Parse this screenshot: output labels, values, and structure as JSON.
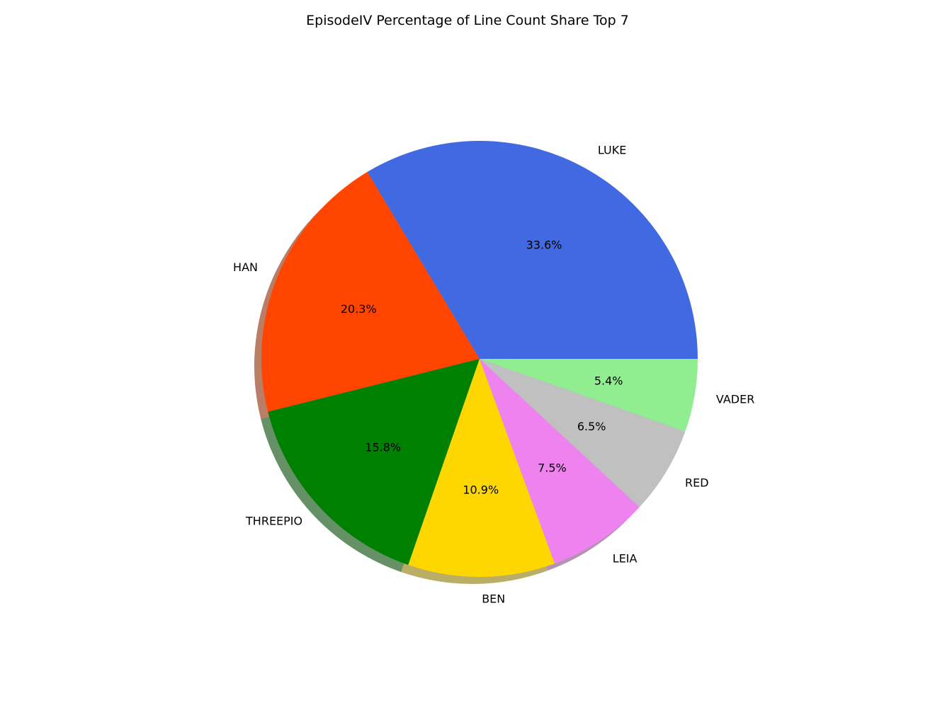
{
  "chart_data": {
    "type": "pie",
    "title": "EpisodeIV Percentage of Line Count Share Top 7",
    "start_angle": 0,
    "direction": "counterclockwise",
    "shadow": true,
    "slices": [
      {
        "label": "LUKE",
        "value": 33.6,
        "pct_label": "33.6%",
        "color": "#4169e1"
      },
      {
        "label": "HAN",
        "value": 20.3,
        "pct_label": "20.3%",
        "color": "#ff4500"
      },
      {
        "label": "THREEPIO",
        "value": 15.8,
        "pct_label": "15.8%",
        "color": "#008000"
      },
      {
        "label": "BEN",
        "value": 10.9,
        "pct_label": "10.9%",
        "color": "#ffd700"
      },
      {
        "label": "LEIA",
        "value": 7.5,
        "pct_label": "7.5%",
        "color": "#ee82ee"
      },
      {
        "label": "RED",
        "value": 6.5,
        "pct_label": "6.5%",
        "color": "#c0c0c0"
      },
      {
        "label": "VADER",
        "value": 5.4,
        "pct_label": "5.4%",
        "color": "#90ee90"
      }
    ]
  }
}
